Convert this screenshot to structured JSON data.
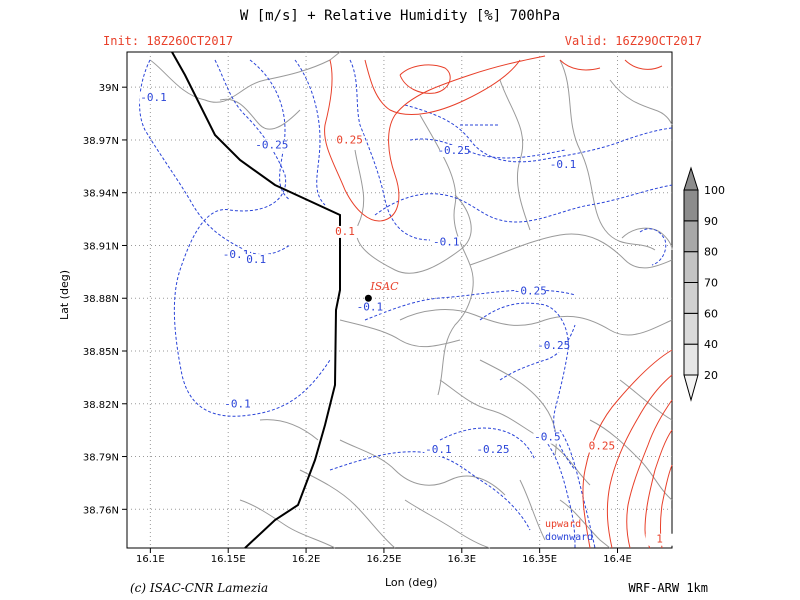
{
  "header": {
    "title": "W [m/s] + Relative Humidity [%] 700hPa",
    "init": "Init: 18Z26OCT2017",
    "valid": "Valid: 16Z29OCT2017"
  },
  "footer": {
    "credit": "(c) ISAC-CNR Lamezia",
    "model": "WRF-ARW 1km"
  },
  "axes": {
    "xlabel": "Lon (deg)",
    "ylabel": "Lat (deg)",
    "xticks": [
      "16.1E",
      "16.15E",
      "16.2E",
      "16.25E",
      "16.3E",
      "16.35E",
      "16.4E"
    ],
    "yticks": [
      "38.76N",
      "38.79N",
      "38.82N",
      "38.85N",
      "38.88N",
      "38.91N",
      "38.94N",
      "38.97N",
      "39N"
    ],
    "xtick_values": [
      16.1,
      16.15,
      16.2,
      16.25,
      16.3,
      16.35,
      16.4
    ],
    "ytick_values": [
      38.76,
      38.79,
      38.82,
      38.85,
      38.88,
      38.91,
      38.94,
      38.97,
      39.0
    ],
    "lon_range": [
      16.085,
      16.435
    ],
    "lat_range": [
      38.738,
      39.02
    ],
    "grid": true
  },
  "station": {
    "label": "ISAC",
    "lon": 16.24,
    "lat": 38.88
  },
  "contour_labels": {
    "downward": [
      {
        "text": "-0.1",
        "lon": 16.102,
        "lat": 38.992
      },
      {
        "text": "-0.25",
        "lon": 16.178,
        "lat": 38.965
      },
      {
        "text": "-0.25",
        "lon": 16.295,
        "lat": 38.962
      },
      {
        "text": "-0.1",
        "lon": 16.365,
        "lat": 38.954
      },
      {
        "text": "-0.1",
        "lon": 16.155,
        "lat": 38.903
      },
      {
        "text": "0.1",
        "lon": 16.168,
        "lat": 38.9
      },
      {
        "text": "-0.1",
        "lon": 16.29,
        "lat": 38.91
      },
      {
        "text": "-0.25",
        "lon": 16.344,
        "lat": 38.882
      },
      {
        "text": "-0.1",
        "lon": 16.241,
        "lat": 38.873
      },
      {
        "text": "-0.25",
        "lon": 16.359,
        "lat": 38.851
      },
      {
        "text": "-0.1",
        "lon": 16.156,
        "lat": 38.818
      },
      {
        "text": "-0.1",
        "lon": 16.285,
        "lat": 38.792
      },
      {
        "text": "-0.25",
        "lon": 16.32,
        "lat": 38.792
      },
      {
        "text": "-0.5",
        "lon": 16.355,
        "lat": 38.799
      }
    ],
    "upward": [
      {
        "text": "0.25",
        "lon": 16.228,
        "lat": 38.968
      },
      {
        "text": "0.1",
        "lon": 16.225,
        "lat": 38.916
      },
      {
        "text": "0.25",
        "lon": 16.39,
        "lat": 38.794
      },
      {
        "text": "1",
        "lon": 16.427,
        "lat": 38.741
      }
    ]
  },
  "legend_words": {
    "upward": "upward",
    "downward": "downward"
  },
  "colorbar": {
    "levels": [
      "20",
      "40",
      "60",
      "70",
      "80",
      "90",
      "100"
    ],
    "colors": [
      "#f4f4f4",
      "#e6e6e6",
      "#dadada",
      "#cfcfcf",
      "#c3c3c3",
      "#a8a8a8",
      "#8c8c8c"
    ]
  },
  "colors": {
    "upward": "#e8402a",
    "downward": "#2a44d8",
    "terrain": "#9a9a9a",
    "boundary": "#000000",
    "grid": "#9a9a9a"
  },
  "chart_data": {
    "type": "contour-map",
    "title": "W [m/s] + Relative Humidity [%] 700hPa",
    "xlabel": "Lon (deg)",
    "ylabel": "Lat (deg)",
    "xlim": [
      16.085,
      16.435
    ],
    "ylim": [
      38.738,
      39.02
    ],
    "contour_levels_w": [
      -0.5,
      -0.25,
      -0.1,
      0.1,
      0.25,
      1
    ],
    "rh_levels": [
      20,
      40,
      60,
      70,
      80,
      90,
      100
    ]
  }
}
